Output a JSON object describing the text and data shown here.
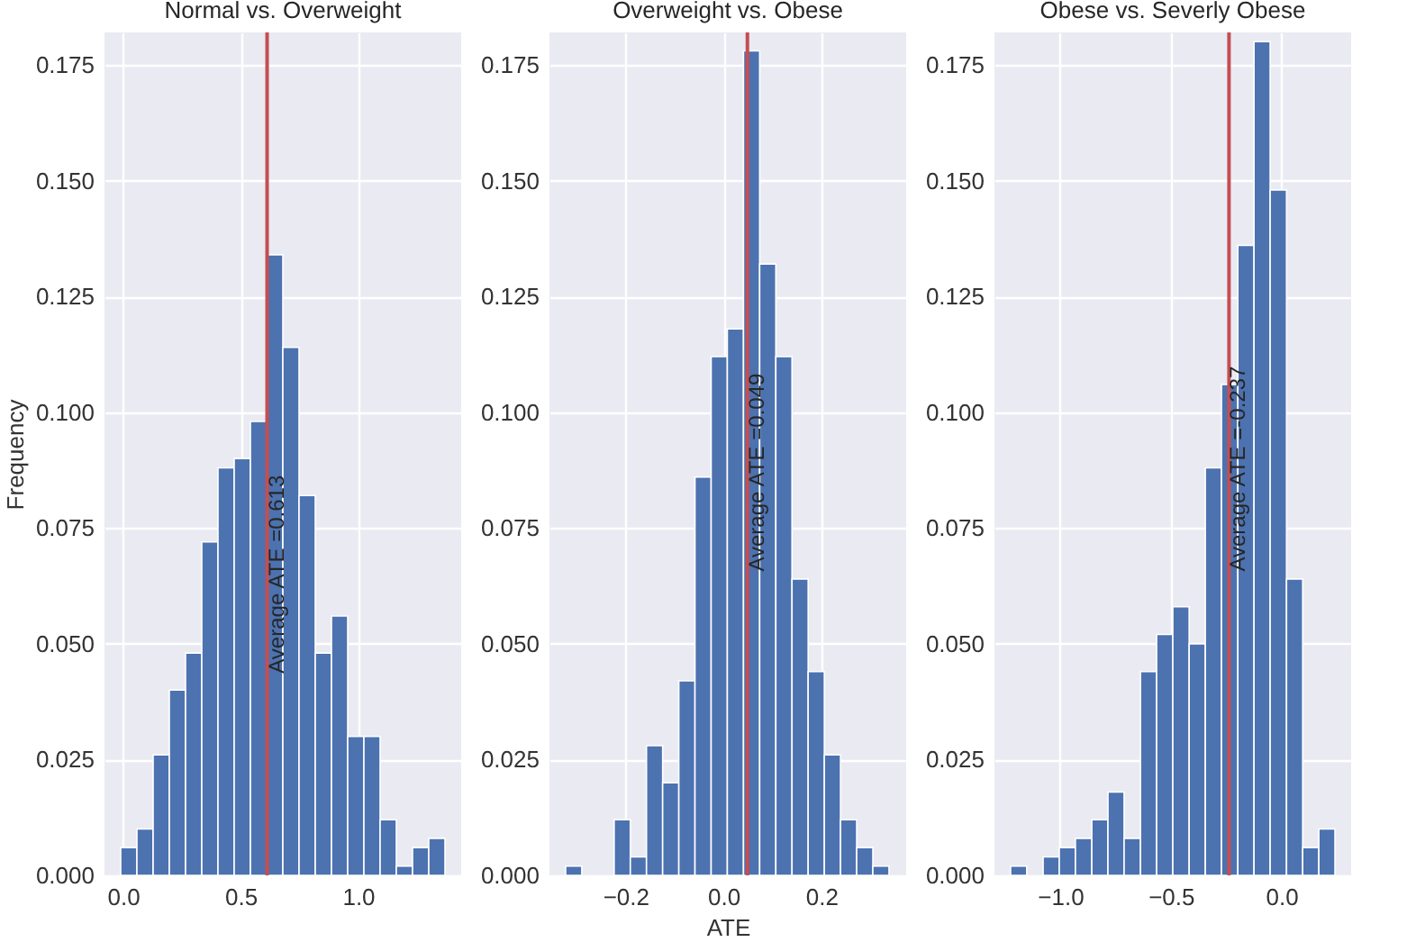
{
  "chart_data": [
    {
      "type": "histogram",
      "title": "Normal vs. Overweight",
      "ylabel": "Frequency",
      "bins": [
        -0.01,
        0.059,
        0.128,
        0.197,
        0.266,
        0.335,
        0.404,
        0.473,
        0.542,
        0.611,
        0.68,
        0.749,
        0.818,
        0.887,
        0.956,
        1.025,
        1.094,
        1.163,
        1.232,
        1.301,
        1.37
      ],
      "values": [
        0.006,
        0.01,
        0.026,
        0.04,
        0.048,
        0.072,
        0.088,
        0.09,
        0.098,
        0.134,
        0.114,
        0.082,
        0.048,
        0.056,
        0.03,
        0.03,
        0.012,
        0.002,
        0.006,
        0.008
      ],
      "color": "#4c72b0",
      "xlim": [
        -0.079,
        1.439
      ],
      "xticks": [
        {
          "value": 0,
          "label": "0.0"
        },
        0.5,
        {
          "value": 1,
          "label": "1.0"
        }
      ],
      "ylim": [
        0,
        0.182
      ],
      "yticks": [
        {
          "value": 0,
          "label": "0.000"
        },
        0.025,
        {
          "value": 0.05,
          "label": "0.050"
        },
        0.075,
        {
          "value": 0.1,
          "label": "0.100"
        },
        0.125,
        {
          "value": 0.15,
          "label": "0.150"
        },
        0.175
      ],
      "ref_lines": [
        {
          "axis": "x",
          "value": 0.613,
          "color": "#c44e52"
        }
      ],
      "annotations": [
        {
          "text": "Average ATE =0.613",
          "x": 0.613,
          "y": 0.044
        }
      ],
      "grid": true
    },
    {
      "type": "histogram",
      "title": "Overweight vs. Obese",
      "xlabel": "ATE",
      "bins": [
        -0.322,
        -0.289,
        -0.256,
        -0.223,
        -0.19,
        -0.157,
        -0.124,
        -0.091,
        -0.058,
        -0.025,
        0.008,
        0.041,
        0.074,
        0.107,
        0.14,
        0.173,
        0.206,
        0.239,
        0.272,
        0.305,
        0.338
      ],
      "values": [
        0.002,
        0,
        0,
        0.012,
        0.004,
        0.028,
        0.02,
        0.042,
        0.086,
        0.112,
        0.118,
        0.178,
        0.132,
        0.112,
        0.064,
        0.044,
        0.026,
        0.012,
        0.006,
        0.002
      ],
      "color": "#4c72b0",
      "xlim": [
        -0.355,
        0.373
      ],
      "xticks": [
        {
          "value": -0.2,
          "label": "−0.2"
        },
        {
          "value": 0,
          "label": "0.0"
        },
        0.2
      ],
      "ylim": [
        0,
        0.182
      ],
      "yticks": [
        {
          "value": 0,
          "label": "0.000"
        },
        0.025,
        {
          "value": 0.05,
          "label": "0.050"
        },
        0.075,
        {
          "value": 0.1,
          "label": "0.100"
        },
        0.125,
        {
          "value": 0.15,
          "label": "0.150"
        },
        0.175
      ],
      "ref_lines": [
        {
          "axis": "x",
          "value": 0.049,
          "color": "#c44e52"
        }
      ],
      "annotations": [
        {
          "text": "Average ATE =0.049",
          "x": 0.049,
          "y": 0.066
        }
      ],
      "grid": true
    },
    {
      "type": "histogram",
      "title": "Obese vs. Severly Obese",
      "bins": [
        -1.224,
        -1.151,
        -1.077,
        -1.004,
        -0.931,
        -0.857,
        -0.784,
        -0.711,
        -0.637,
        -0.564,
        -0.491,
        -0.417,
        -0.344,
        -0.271,
        -0.197,
        -0.124,
        -0.051,
        0.023,
        0.096,
        0.169,
        0.242
      ],
      "values": [
        0.002,
        0,
        0.004,
        0.006,
        0.008,
        0.012,
        0.018,
        0.008,
        0.044,
        0.052,
        0.058,
        0.05,
        0.088,
        0.106,
        0.136,
        0.18,
        0.148,
        0.064,
        0.006,
        0.01
      ],
      "color": "#4c72b0",
      "xlim": [
        -1.297,
        0.315
      ],
      "xticks": [
        {
          "value": -1,
          "label": "−1.0"
        },
        {
          "value": -0.5,
          "label": "−0.5"
        },
        {
          "value": 0,
          "label": "0.0"
        }
      ],
      "ylim": [
        0,
        0.182
      ],
      "yticks": [
        {
          "value": 0,
          "label": "0.000"
        },
        0.025,
        {
          "value": 0.05,
          "label": "0.050"
        },
        0.075,
        {
          "value": 0.1,
          "label": "0.100"
        },
        0.125,
        {
          "value": 0.15,
          "label": "0.150"
        },
        0.175
      ],
      "ref_lines": [
        {
          "axis": "x",
          "value": -0.237,
          "color": "#c44e52"
        }
      ],
      "annotations": [
        {
          "text": "Average ATE =-0.237",
          "x": -0.237,
          "y": 0.066
        }
      ],
      "grid": true
    }
  ]
}
